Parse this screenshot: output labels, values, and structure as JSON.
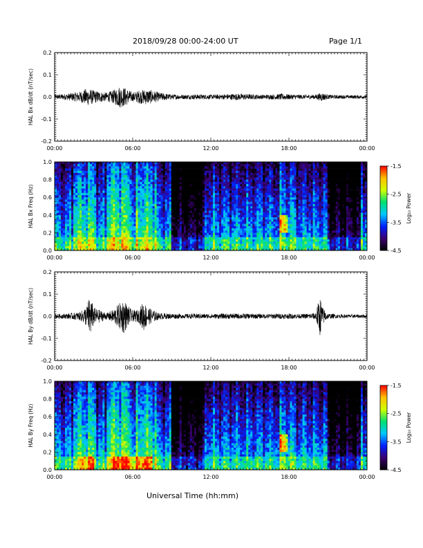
{
  "header": {
    "title": "2018/09/28  00:00-24:00 UT",
    "page": "Page 1/1"
  },
  "footer": {
    "xlabel": "Universal Time (hh:mm)"
  },
  "chart_data": [
    {
      "type": "line",
      "ylabel": "HAL Bx dB/dt (nT/sec)",
      "xlim": [
        0,
        24
      ],
      "ylim": [
        -0.2,
        0.2
      ],
      "yticks": [
        "0.2",
        "0.1",
        "0.0",
        "-0.1",
        "-0.2"
      ],
      "xticks": [
        "00:00",
        "06:00",
        "12:00",
        "18:00",
        "00:00"
      ],
      "envelope": {
        "x": [
          0,
          1,
          2,
          2.5,
          3,
          4,
          4.5,
          5,
          5.5,
          6,
          6.5,
          7,
          7.5,
          8,
          9,
          10,
          11,
          12,
          13,
          14,
          15,
          16,
          17,
          17.5,
          18,
          19,
          20,
          20.5,
          21,
          22,
          23,
          24
        ],
        "amplitude": [
          0.01,
          0.015,
          0.025,
          0.04,
          0.03,
          0.02,
          0.03,
          0.05,
          0.04,
          0.02,
          0.03,
          0.035,
          0.03,
          0.02,
          0.012,
          0.01,
          0.012,
          0.01,
          0.012,
          0.015,
          0.012,
          0.01,
          0.012,
          0.015,
          0.012,
          0.01,
          0.01,
          0.02,
          0.01,
          0.008,
          0.008,
          0.008
        ]
      },
      "color": "#000000"
    },
    {
      "type": "heatmap",
      "ylabel": "HAL Bx Freq (Hz)",
      "xlim": [
        0,
        24
      ],
      "ylim": [
        0,
        1.0
      ],
      "yticks": [
        "1.0",
        "0.8",
        "0.6",
        "0.4",
        "0.2",
        "0.0"
      ],
      "xticks": [
        "00:00",
        "06:00",
        "12:00",
        "18:00",
        "00:00"
      ],
      "colorbar": {
        "label": "Log₁₀ Power",
        "min": -4.5,
        "max": -1.5,
        "ticks": [
          "-1.5",
          "-2.5",
          "-3.5",
          "-4.5"
        ]
      },
      "colors": [
        "#000000",
        "#3a0070",
        "#0020ff",
        "#00c8ff",
        "#00e070",
        "#d0ff00",
        "#ffc000",
        "#ff0000"
      ]
    },
    {
      "type": "line",
      "ylabel": "HAL By dB/dt (nT/sec)",
      "xlim": [
        0,
        24
      ],
      "ylim": [
        -0.2,
        0.2
      ],
      "yticks": [
        "0.2",
        "0.1",
        "0.0",
        "-0.1",
        "-0.2"
      ],
      "xticks": [
        "00:00",
        "06:00",
        "12:00",
        "18:00",
        "00:00"
      ],
      "envelope": {
        "x": [
          0,
          1,
          2,
          2.5,
          2.7,
          3,
          4,
          4.5,
          5,
          5.3,
          5.6,
          6,
          6.5,
          6.8,
          7.2,
          8,
          9,
          10,
          11,
          12,
          13,
          14,
          15,
          16,
          17,
          18,
          19,
          20,
          20.4,
          20.6,
          21,
          22,
          23,
          24
        ],
        "amplitude": [
          0.01,
          0.012,
          0.02,
          0.05,
          0.1,
          0.04,
          0.015,
          0.03,
          0.06,
          0.08,
          0.05,
          0.025,
          0.03,
          0.07,
          0.04,
          0.015,
          0.012,
          0.01,
          0.012,
          0.01,
          0.012,
          0.012,
          0.012,
          0.01,
          0.012,
          0.012,
          0.01,
          0.015,
          0.09,
          0.04,
          0.012,
          0.008,
          0.008,
          0.008
        ]
      },
      "color": "#000000"
    },
    {
      "type": "heatmap",
      "ylabel": "HAL By Freq (Hz)",
      "xlim": [
        0,
        24
      ],
      "ylim": [
        0,
        1.0
      ],
      "yticks": [
        "1.0",
        "0.8",
        "0.6",
        "0.4",
        "0.2",
        "0.0"
      ],
      "xticks": [
        "00:00",
        "06:00",
        "12:00",
        "18:00",
        "00:00"
      ],
      "colorbar": {
        "label": "Log₁₀ Power",
        "min": -4.5,
        "max": -1.5,
        "ticks": [
          "-1.5",
          "-2.5",
          "-3.5",
          "-4.5"
        ]
      },
      "colors": [
        "#000000",
        "#3a0070",
        "#0020ff",
        "#00c8ff",
        "#00e070",
        "#d0ff00",
        "#ffc000",
        "#ff0000"
      ]
    }
  ]
}
